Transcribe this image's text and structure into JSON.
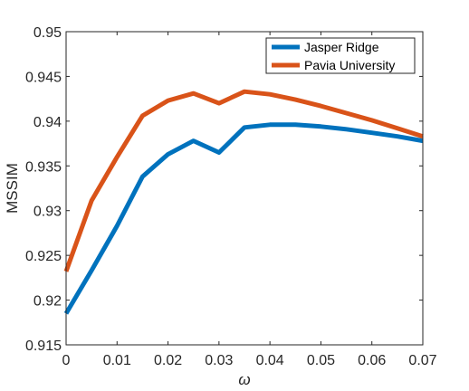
{
  "chart_data": {
    "type": "line",
    "title": "",
    "xlabel": "ω",
    "ylabel": "MSSIM",
    "xlim": [
      0,
      0.07
    ],
    "ylim": [
      0.915,
      0.95
    ],
    "x_ticks": [
      0,
      0.01,
      0.02,
      0.03,
      0.04,
      0.05,
      0.06,
      0.07
    ],
    "x_tick_labels": [
      "0",
      "0.01",
      "0.02",
      "0.03",
      "0.04",
      "0.05",
      "0.06",
      "0.07"
    ],
    "y_ticks": [
      0.915,
      0.92,
      0.925,
      0.93,
      0.935,
      0.94,
      0.945,
      0.95
    ],
    "y_tick_labels": [
      "0.915",
      "0.92",
      "0.925",
      "0.93",
      "0.935",
      "0.94",
      "0.945",
      "0.95"
    ],
    "grid": false,
    "legend_position": "top-right",
    "x": [
      0,
      0.005,
      0.01,
      0.015,
      0.02,
      0.025,
      0.03,
      0.035,
      0.04,
      0.045,
      0.05,
      0.055,
      0.06,
      0.065,
      0.07
    ],
    "series": [
      {
        "name": "Jasper Ridge",
        "color": "#0072BD",
        "values": [
          0.9185,
          0.9233,
          0.9283,
          0.9338,
          0.9363,
          0.9378,
          0.9365,
          0.9393,
          0.9396,
          0.9396,
          0.9394,
          0.9391,
          0.9387,
          0.9383,
          0.9378
        ]
      },
      {
        "name": "Pavia University",
        "color": "#D95319",
        "values": [
          0.9232,
          0.9311,
          0.936,
          0.9406,
          0.9423,
          0.9431,
          0.942,
          0.9433,
          0.943,
          0.9424,
          0.9417,
          0.9409,
          0.9401,
          0.9392,
          0.9383
        ]
      }
    ]
  }
}
